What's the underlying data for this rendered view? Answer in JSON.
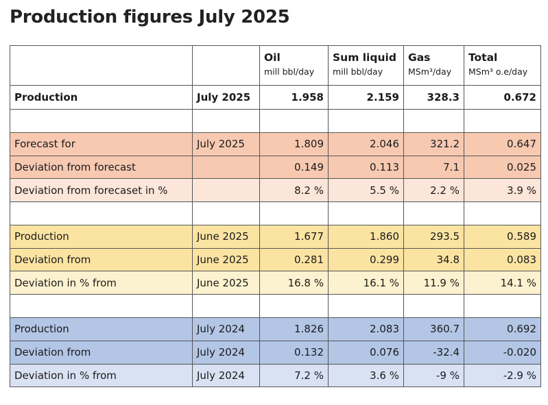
{
  "title": "Production figures July 2025",
  "header": {
    "columns": [
      {
        "name": "Oil",
        "unit": "mill bbl/day"
      },
      {
        "name": "Sum liquid",
        "unit": "mill bbl/day"
      },
      {
        "name": "Gas",
        "unit": "MSm³/day"
      },
      {
        "name": "Total",
        "unit": "MSm³ o.e/day"
      }
    ]
  },
  "rows": [
    {
      "label": "Production",
      "period": "July 2025",
      "oil": "1.958",
      "liquid": "2.159",
      "gas": "328.3",
      "total": "0.672"
    },
    {
      "label": "Forecast for",
      "period": "July 2025",
      "oil": "1.809",
      "liquid": "2.046",
      "gas": "321.2",
      "total": "0.647"
    },
    {
      "label": "Deviation from forecast",
      "period": "",
      "oil": "0.149",
      "liquid": "0.113",
      "gas": "7.1",
      "total": "0.025"
    },
    {
      "label": "Deviation from forecaset in %",
      "period": "",
      "oil": "8.2 %",
      "liquid": "5.5 %",
      "gas": "2.2 %",
      "total": "3.9 %"
    },
    {
      "label": "Production",
      "period": "June 2025",
      "oil": "1.677",
      "liquid": "1.860",
      "gas": "293.5",
      "total": "0.589"
    },
    {
      "label": "Deviation from",
      "period": "June 2025",
      "oil": "0.281",
      "liquid": "0.299",
      "gas": "34.8",
      "total": "0.083"
    },
    {
      "label": "Deviation in % from",
      "period": "June 2025",
      "oil": "16.8 %",
      "liquid": "16.1 %",
      "gas": "11.9 %",
      "total": "14.1 %"
    },
    {
      "label": "Production",
      "period": "July 2024",
      "oil": "1.826",
      "liquid": "2.083",
      "gas": "360.7",
      "total": "0.692"
    },
    {
      "label": "Deviation from",
      "period": "July 2024",
      "oil": "0.132",
      "liquid": "0.076",
      "gas": "-32.4",
      "total": "-0.020"
    },
    {
      "label": "Deviation in % from",
      "period": "July 2024",
      "oil": "7.2 %",
      "liquid": "3.6 %",
      "gas": "-9 %",
      "total": "-2.9 %"
    }
  ],
  "colors": {
    "forecast_group": "#f7c9b1",
    "forecast_pct": "#fce6da",
    "june_group": "#fbe3a2",
    "june_pct": "#fdf2cf",
    "lastyear_group": "#b3c6e6",
    "lastyear_pct": "#d9e2f3"
  }
}
